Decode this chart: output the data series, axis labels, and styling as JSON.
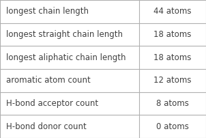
{
  "rows": [
    {
      "label": "longest chain length",
      "value": "44 atoms"
    },
    {
      "label": "longest straight chain length",
      "value": "18 atoms"
    },
    {
      "label": "longest aliphatic chain length",
      "value": "18 atoms"
    },
    {
      "label": "aromatic atom count",
      "value": "12 atoms"
    },
    {
      "label": "H-bond acceptor count",
      "value": "8 atoms"
    },
    {
      "label": "H-bond donor count",
      "value": "0 atoms"
    }
  ],
  "background_color": "#ffffff",
  "border_color": "#b0b0b0",
  "text_color": "#404040",
  "font_size": 8.5,
  "col_split": 0.675
}
